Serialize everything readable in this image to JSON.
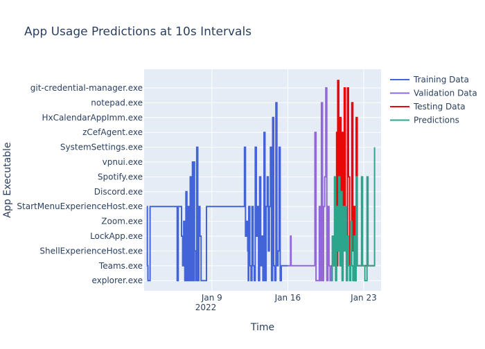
{
  "chart_data": {
    "type": "line",
    "title": "App Usage Predictions at 10s Intervals",
    "xlabel": "Time",
    "ylabel": "App Executable",
    "x_ticks": [
      "Jan 9",
      "Jan 16",
      "Jan 23"
    ],
    "x_tick_sublabel": "2022",
    "categories": [
      "explorer.exe",
      "Teams.exe",
      "ShellExperienceHost.exe",
      "LockApp.exe",
      "Zoom.exe",
      "StartMenuExperienceHost.exe",
      "Discord.exe",
      "Spotify.exe",
      "vpnui.exe",
      "SystemSettings.exe",
      "zCefAgent.exe",
      "HxCalendarAppImm.exe",
      "notepad.exe",
      "git-credential-manager.exe"
    ],
    "grid": true,
    "legend_position": "top-right",
    "series": [
      {
        "name": "Training Data",
        "color": "#4363d8",
        "x": [
          3.0,
          3.05,
          3.1,
          3.3,
          3.5,
          3.8,
          3.9,
          4.0,
          4.2,
          4.4,
          4.6,
          4.8,
          5.0,
          5.5,
          5.8,
          5.9,
          6.0,
          6.1,
          6.2,
          6.3,
          6.4,
          6.5,
          6.6,
          6.7,
          6.8,
          6.9,
          7.0,
          7.1,
          7.2,
          7.3,
          7.35,
          7.4,
          7.5,
          7.6,
          7.7,
          7.8,
          7.9,
          8.0,
          8.5,
          9.0,
          10.0,
          11.0,
          11.5,
          11.9,
          12.0,
          12.1,
          12.2,
          12.3,
          12.35,
          12.4,
          12.5,
          12.6,
          12.7,
          12.8,
          12.9,
          13.0,
          13.1,
          13.2,
          13.3,
          13.4,
          13.5,
          13.6,
          13.7,
          13.8,
          13.9,
          14.0,
          14.1,
          14.2,
          14.3,
          14.4,
          14.5,
          14.6,
          14.7,
          14.8,
          14.9,
          15.0,
          15.1,
          15.2,
          15.3,
          15.4,
          15.5,
          16.0
        ],
        "y": [
          5,
          1,
          0,
          5,
          5,
          5,
          5,
          5,
          5,
          5,
          5,
          5,
          5,
          5,
          0,
          5,
          5,
          5,
          3,
          1,
          4,
          0,
          6,
          0,
          5,
          0,
          7,
          0,
          8,
          0,
          8,
          2,
          0,
          9,
          0,
          5,
          3,
          0,
          5,
          5,
          5,
          5,
          5,
          5,
          9,
          3,
          4,
          2,
          0,
          5,
          1,
          0,
          5,
          1,
          0,
          9,
          3,
          5,
          0,
          7,
          1,
          3,
          0,
          10,
          0,
          5,
          7,
          2,
          5,
          9,
          0,
          11,
          1,
          0,
          12,
          1,
          2,
          9,
          0,
          1,
          1,
          1
        ]
      },
      {
        "name": "Validation Data",
        "color": "#9467d8",
        "x": [
          16.0,
          16.2,
          16.25,
          16.3,
          16.4,
          17.0,
          18.0,
          18.3,
          18.5,
          18.6,
          18.7,
          18.8,
          18.9,
          19.0,
          19.1,
          19.2,
          19.3,
          19.4,
          19.5,
          19.6,
          19.7,
          19.8,
          19.9,
          20.0
        ],
        "y": [
          1,
          1,
          3,
          1,
          1,
          1,
          1,
          1,
          10,
          0,
          0,
          0,
          5,
          0,
          12,
          0,
          5,
          7,
          13,
          0,
          5,
          1,
          0,
          1
        ]
      },
      {
        "name": "Testing Data",
        "color": "#e8080a",
        "x": [
          20.0,
          20.1,
          20.2,
          20.3,
          20.4,
          20.5,
          20.55,
          20.6,
          20.7,
          20.8,
          20.9,
          21.0,
          21.1,
          21.2,
          21.3,
          21.4,
          21.5,
          21.6,
          21.7,
          21.8,
          21.9,
          22.0,
          22.1,
          22.2,
          22.3,
          22.4,
          22.5,
          22.6,
          22.7,
          22.8,
          22.9,
          23.0,
          23.1,
          23.2,
          23.3,
          23.4,
          23.5,
          23.6,
          23.7,
          23.8,
          23.9,
          24.0
        ],
        "y": [
          1,
          1,
          1,
          1,
          1,
          10,
          1,
          13.5,
          2,
          11,
          1,
          10,
          3,
          13,
          4,
          1,
          13,
          7,
          1,
          3,
          12,
          2,
          5,
          0,
          11,
          1,
          1,
          1,
          1,
          1,
          1,
          1,
          1,
          1,
          1,
          1,
          1,
          1,
          1,
          1,
          1,
          1
        ]
      },
      {
        "name": "Predictions",
        "color": "#2ca58d",
        "x": [
          20.0,
          20.1,
          20.2,
          20.3,
          20.4,
          20.5,
          20.6,
          20.7,
          20.8,
          20.9,
          21.0,
          21.1,
          21.2,
          21.3,
          21.4,
          21.5,
          21.6,
          21.7,
          21.8,
          21.9,
          22.0,
          22.1,
          22.2,
          22.3,
          22.4,
          22.5,
          22.6,
          22.7,
          22.8,
          22.9,
          23.0,
          23.1,
          23.2,
          23.3,
          23.4,
          23.5,
          23.6,
          23.7,
          23.8,
          23.9,
          24.0
        ],
        "y": [
          0,
          3,
          1,
          7,
          0,
          5,
          2,
          7,
          1,
          6,
          0,
          5,
          2,
          5,
          0,
          3,
          1,
          0,
          4,
          1,
          0,
          3,
          0,
          7,
          1,
          1,
          1,
          1,
          7,
          1,
          1,
          0,
          0,
          7,
          1,
          1,
          1,
          1,
          1,
          1,
          9
        ]
      }
    ]
  }
}
